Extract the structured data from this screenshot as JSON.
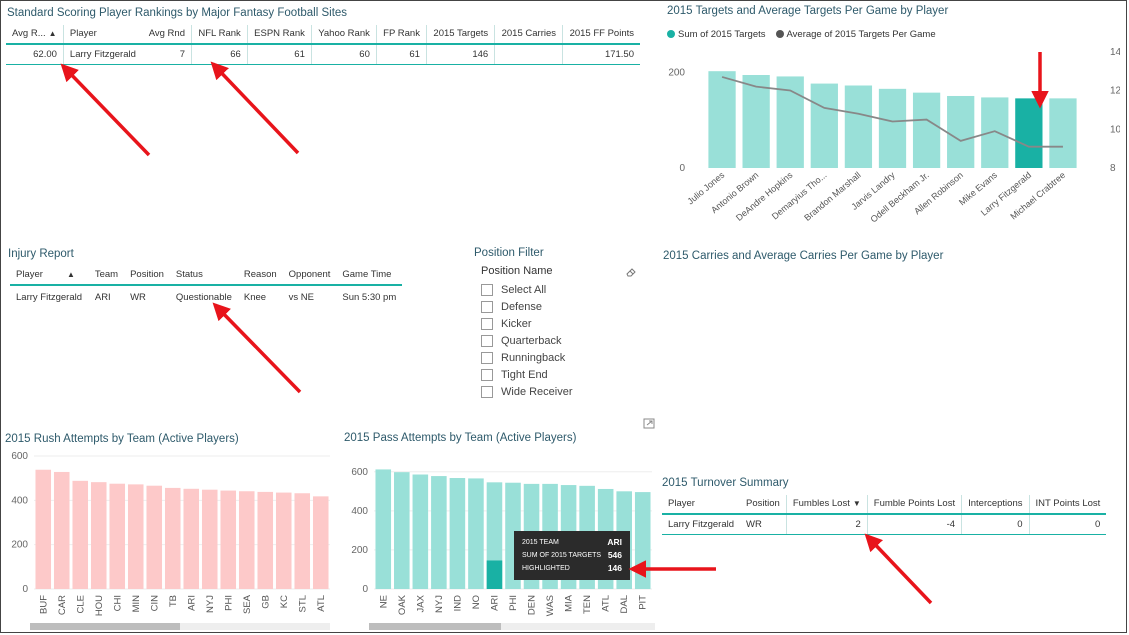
{
  "rankings": {
    "title": "Standard Scoring Player Rankings by Major Fantasy Football Sites",
    "columns": [
      "Avg R...",
      "Player",
      "Avg Rnd",
      "NFL Rank",
      "ESPN Rank",
      "Yahoo Rank",
      "FP Rank",
      "2015 Targets",
      "2015 Carries",
      "2015 FF Points"
    ],
    "row": {
      "avg_r": "62.00",
      "player": "Larry Fitzgerald",
      "avg_rnd": "7",
      "nfl_rank": "66",
      "espn_rank": "61",
      "yahoo_rank": "60",
      "fp_rank": "61",
      "targets": "146",
      "carries": "",
      "ff_points": "171.50"
    },
    "sort_icon": "triangle-up-icon"
  },
  "injury": {
    "title": "Injury Report",
    "columns": [
      "Player",
      "Team",
      "Position",
      "Status",
      "Reason",
      "Opponent",
      "Game Time"
    ],
    "row": {
      "player": "Larry Fitzgerald",
      "team": "ARI",
      "position": "WR",
      "status": "Questionable",
      "reason": "Knee",
      "opponent": "vs  NE",
      "game_time": "Sun 5:30 pm"
    }
  },
  "position_filter": {
    "title": "Position Filter",
    "header": "Position Name",
    "eraser_icon": "eraser-icon",
    "options": [
      "Select All",
      "Defense",
      "Kicker",
      "Quarterback",
      "Runningback",
      "Tight End",
      "Wide Receiver"
    ]
  },
  "carries_title": "2015 Carries and Average Carries Per Game by Player",
  "turnover": {
    "title": "2015 Turnover Summary",
    "columns": [
      "Player",
      "Position",
      "Fumbles Lost",
      "Fumble Points Lost",
      "Interceptions",
      "INT Points Lost"
    ],
    "row": {
      "player": "Larry Fitzgerald",
      "position": "WR",
      "fumbles_lost": "2",
      "fumble_points_lost": "-4",
      "interceptions": "0",
      "int_points_lost": "0"
    }
  },
  "tooltip": {
    "label1": "2015 TEAM",
    "value1": "ARI",
    "label2": "SUM OF 2015 TARGETS",
    "value2": "546",
    "label3": "HIGHLIGHTED",
    "value3": "146"
  },
  "colors": {
    "teal": "#19b1a4",
    "teal_light": "#99e0d8",
    "pink": "#fdc9c9",
    "arrow": "#e8141b",
    "line": "#888888"
  },
  "chart_data": [
    {
      "type": "bar+line",
      "title": "2015 Targets and Average Targets Per Game by Player",
      "legend": [
        "Sum of 2015 Targets",
        "Average of 2015 Targets Per Game"
      ],
      "categories": [
        "Julio Jones",
        "Antonio Brown",
        "DeAndre Hopkins",
        "Demaryius Tho...",
        "Brandon Marshall",
        "Jarvis Landry",
        "Odell Beckham Jr.",
        "Allen Robinson",
        "Mike Evans",
        "Larry Fitzgerald",
        "Michael Crabtree"
      ],
      "series": [
        {
          "name": "Sum of 2015 Targets",
          "axis": "left",
          "values": [
            203,
            195,
            192,
            177,
            173,
            166,
            158,
            151,
            148,
            146,
            146
          ]
        },
        {
          "name": "Average of 2015 Targets Per Game",
          "axis": "right",
          "values": [
            12.7,
            12.2,
            12.0,
            11.1,
            10.8,
            10.4,
            10.5,
            9.4,
            9.9,
            9.1,
            9.1
          ]
        }
      ],
      "highlight_index": 9,
      "y_left_ticks": [
        "0",
        "200"
      ],
      "ylim_left": [
        0,
        260
      ],
      "y_right_ticks": [
        "8",
        "10",
        "12",
        "14"
      ],
      "ylim_right": [
        8,
        14.4
      ]
    },
    {
      "type": "bar",
      "title": "2015 Rush Attempts by Team (Active Players)",
      "categories": [
        "BUF",
        "CAR",
        "CLE",
        "HOU",
        "CHI",
        "MIN",
        "CIN",
        "TB",
        "ARI",
        "NYJ",
        "PHI",
        "SEA",
        "GB",
        "KC",
        "STL",
        "ATL"
      ],
      "values": [
        538,
        528,
        488,
        482,
        475,
        472,
        466,
        456,
        452,
        448,
        444,
        441,
        438,
        435,
        432,
        418
      ],
      "y_ticks": [
        "0",
        "200",
        "400",
        "600"
      ],
      "ylim": [
        0,
        600
      ]
    },
    {
      "type": "bar",
      "title": "2015 Pass Attempts  by Team (Active Players)",
      "categories": [
        "NE",
        "OAK",
        "JAX",
        "NYJ",
        "IND",
        "NO",
        "ARI",
        "PHI",
        "DEN",
        "WAS",
        "MIA",
        "TEN",
        "ATL",
        "DAL",
        "PIT"
      ],
      "values": [
        612,
        598,
        586,
        578,
        568,
        566,
        546,
        544,
        538,
        538,
        532,
        528,
        512,
        500,
        496
      ],
      "highlighted_values": {
        "ARI": 146
      },
      "y_ticks": [
        "0",
        "200",
        "400",
        "600"
      ],
      "ylim": [
        0,
        650
      ]
    }
  ]
}
